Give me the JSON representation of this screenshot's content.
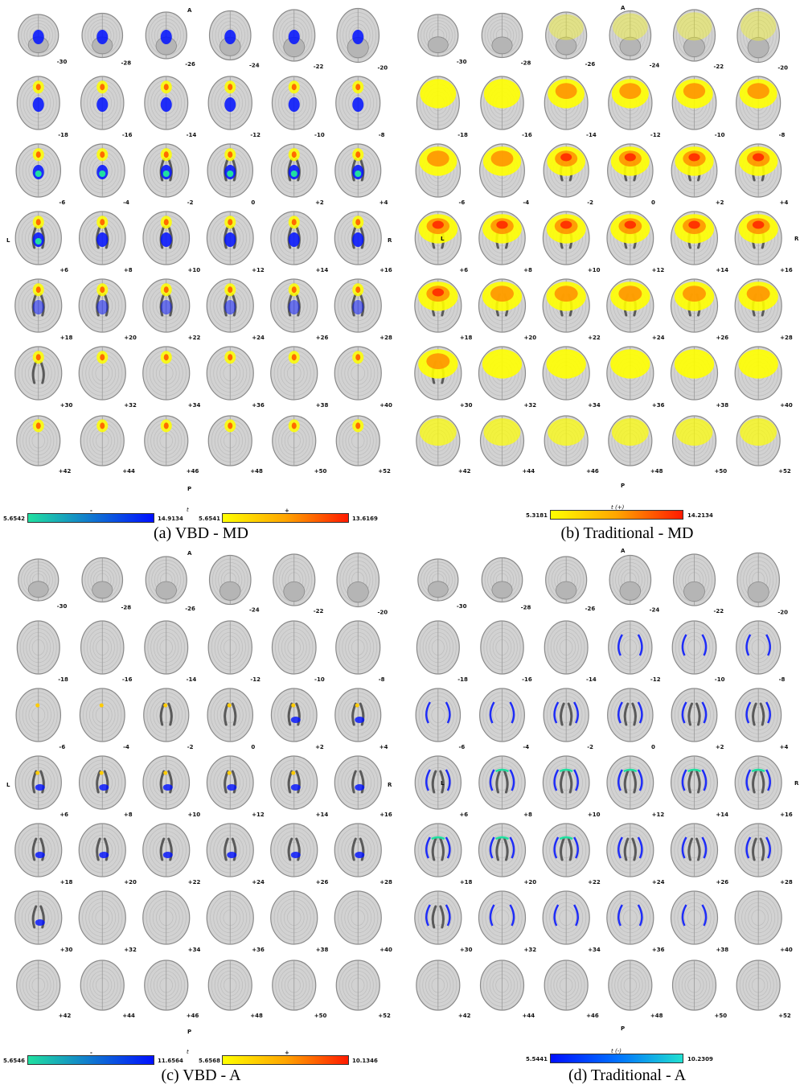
{
  "slice_labels": [
    "-30",
    "-28",
    "-26",
    "-24",
    "-22",
    "-20",
    "-18",
    "-16",
    "-14",
    "-12",
    "-10",
    "-8",
    "-6",
    "-4",
    "-2",
    "0",
    "+2",
    "+4",
    "+6",
    "+8",
    "+10",
    "+12",
    "+14",
    "+16",
    "+18",
    "+20",
    "+22",
    "+24",
    "+26",
    "+28",
    "+30",
    "+32",
    "+34",
    "+36",
    "+38",
    "+40",
    "+42",
    "+44",
    "+46",
    "+48",
    "+50",
    "+52"
  ],
  "orientation": {
    "anterior": "A",
    "posterior": "P",
    "left": "L",
    "right": "R"
  },
  "panels": {
    "a": {
      "caption": "(a) VBD - MD",
      "colorbar_title": "t",
      "neg_sign": "-",
      "pos_sign": "+",
      "neg_min": "5.6542",
      "neg_max": "14.9134",
      "pos_min": "5.6541",
      "pos_max": "13.6169"
    },
    "b": {
      "caption": "(b) Traditional - MD",
      "colorbar_title": "t (+)",
      "min": "5.3181",
      "max": "14.2134"
    },
    "c": {
      "caption": "(c) VBD - A",
      "colorbar_title": "t",
      "neg_sign": "-",
      "pos_sign": "+",
      "neg_min": "5.6546",
      "neg_max": "11.6564",
      "pos_min": "5.6568",
      "pos_max": "10.1346"
    },
    "d": {
      "caption": "(d) Traditional - A",
      "colorbar_title": "t (-)",
      "min": "5.5441",
      "max": "10.2309"
    }
  },
  "colors": {
    "brain_fill": "#d2d2d2",
    "brain_edge": "#8a8a8a",
    "ventricle": "#5a5a5a",
    "positive_low": "#ffff00",
    "positive_high": "#ff1a00",
    "negative_low": "#20e0a0",
    "negative_high": "#0010ff"
  }
}
